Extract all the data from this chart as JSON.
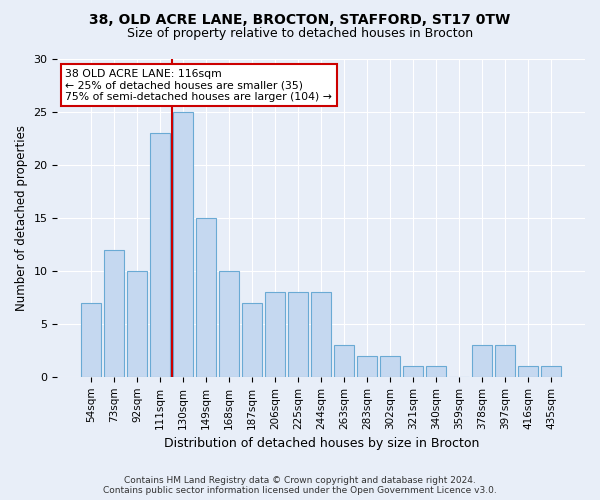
{
  "title_line1": "38, OLD ACRE LANE, BROCTON, STAFFORD, ST17 0TW",
  "title_line2": "Size of property relative to detached houses in Brocton",
  "xlabel": "Distribution of detached houses by size in Brocton",
  "ylabel": "Number of detached properties",
  "categories": [
    "54sqm",
    "73sqm",
    "92sqm",
    "111sqm",
    "130sqm",
    "149sqm",
    "168sqm",
    "187sqm",
    "206sqm",
    "225sqm",
    "244sqm",
    "263sqm",
    "283sqm",
    "302sqm",
    "321sqm",
    "340sqm",
    "359sqm",
    "378sqm",
    "397sqm",
    "416sqm",
    "435sqm"
  ],
  "values": [
    7,
    12,
    10,
    23,
    25,
    15,
    10,
    7,
    8,
    8,
    8,
    3,
    2,
    2,
    1,
    1,
    0,
    3,
    3,
    1,
    1
  ],
  "bar_color": "#c5d8f0",
  "bar_edge_color": "#6aaad4",
  "vline_color": "#cc0000",
  "vline_index": 3.5,
  "annotation_box_text": "38 OLD ACRE LANE: 116sqm\n← 25% of detached houses are smaller (35)\n75% of semi-detached houses are larger (104) →",
  "annotation_box_color": "#cc0000",
  "ylim": [
    0,
    30
  ],
  "yticks": [
    0,
    5,
    10,
    15,
    20,
    25,
    30
  ],
  "footer_line1": "Contains HM Land Registry data © Crown copyright and database right 2024.",
  "footer_line2": "Contains public sector information licensed under the Open Government Licence v3.0.",
  "bg_color": "#e8eef8",
  "plot_bg_color": "#e8eef8"
}
